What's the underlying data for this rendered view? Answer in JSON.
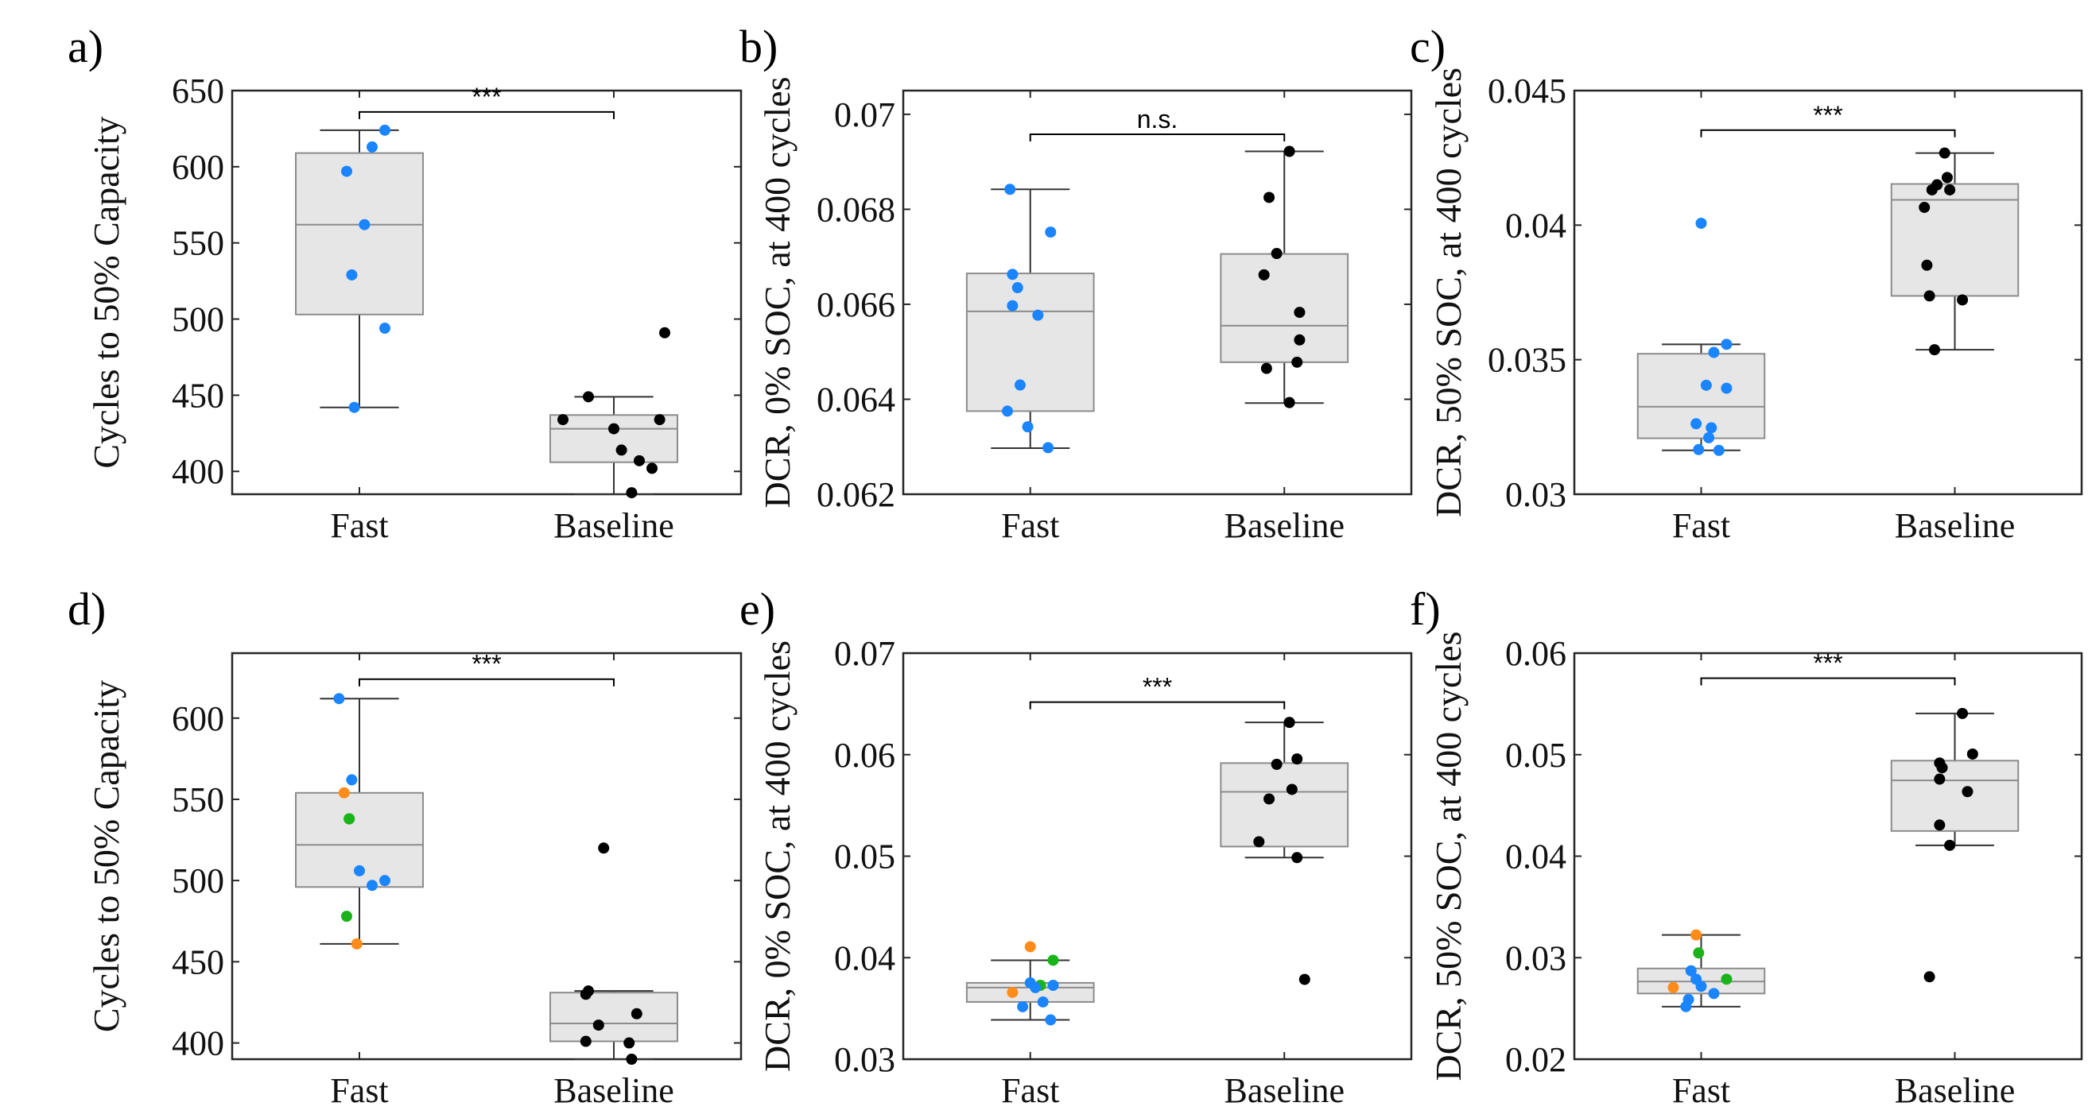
{
  "colors": {
    "fast": "#1a85ff",
    "baseline": "#000000",
    "orange": "#ff8c1a",
    "green": "#1ab41a",
    "box_fill": "#e6e6e6",
    "box_edge": "#8c8c8c"
  },
  "chart_data": [
    {
      "panel": "a)",
      "type": "box",
      "ylabel": "Cycles to 50% Capacity",
      "ylim": [
        385,
        650
      ],
      "yticks": [
        400,
        450,
        500,
        550,
        600,
        650
      ],
      "ytick_labels": [
        "400",
        "450",
        "500",
        "550",
        "600",
        "650"
      ],
      "categories": [
        "Fast",
        "Baseline"
      ],
      "boxes": [
        {
          "q1": 503,
          "median": 562,
          "q3": 609,
          "whisker_low": 442,
          "whisker_high": 624
        },
        {
          "q1": 406,
          "median": 428,
          "q3": 437,
          "whisker_low": 385,
          "whisker_high": 449
        }
      ],
      "points": [
        {
          "category": 0,
          "values": [
            624,
            613,
            597,
            562,
            529,
            494,
            442
          ],
          "offsets": [
            0.1,
            0.05,
            -0.05,
            0.02,
            -0.03,
            0.1,
            -0.02
          ],
          "colors": [
            "#1a85ff",
            "#1a85ff",
            "#1a85ff",
            "#1a85ff",
            "#1a85ff",
            "#1a85ff",
            "#1a85ff"
          ]
        },
        {
          "category": 1,
          "values": [
            491,
            449,
            434,
            434,
            428,
            414,
            407,
            402,
            386
          ],
          "offsets": [
            0.2,
            -0.1,
            -0.2,
            0.18,
            0.0,
            0.03,
            0.1,
            0.15,
            0.07
          ],
          "colors": [
            "#000000",
            "#000000",
            "#000000",
            "#000000",
            "#000000",
            "#000000",
            "#000000",
            "#000000",
            "#000000"
          ]
        }
      ],
      "significance": "***",
      "sig_y": 636
    },
    {
      "panel": "b)",
      "type": "box",
      "ylabel": "DCR, 0% SOC, at 400 cycles",
      "ylim": [
        0.062,
        0.0705
      ],
      "yticks": [
        0.062,
        0.064,
        0.066,
        0.068,
        0.07
      ],
      "ytick_labels": [
        "0.062",
        "0.064",
        "0.066",
        "0.068",
        "0.07"
      ],
      "categories": [
        "Fast",
        "Baseline"
      ],
      "boxes": [
        {
          "q1": 0.06375,
          "median": 0.06585,
          "q3": 0.06665,
          "whisker_low": 0.06297,
          "whisker_high": 0.06842
        },
        {
          "q1": 0.06478,
          "median": 0.06555,
          "q3": 0.06706,
          "whisker_low": 0.06392,
          "whisker_high": 0.06922
        }
      ],
      "points": [
        {
          "category": 0,
          "values": [
            0.06842,
            0.06752,
            0.06663,
            0.06635,
            0.06597,
            0.06577,
            0.0643,
            0.06375,
            0.06342,
            0.06298
          ],
          "offsets": [
            -0.08,
            0.08,
            -0.07,
            -0.05,
            -0.07,
            0.03,
            -0.04,
            -0.09,
            -0.01,
            0.07
          ],
          "colors": [
            "#1a85ff",
            "#1a85ff",
            "#1a85ff",
            "#1a85ff",
            "#1a85ff",
            "#1a85ff",
            "#1a85ff",
            "#1a85ff",
            "#1a85ff",
            "#1a85ff"
          ]
        },
        {
          "category": 1,
          "values": [
            0.06922,
            0.06825,
            0.06707,
            0.06662,
            0.06583,
            0.06525,
            0.06478,
            0.06465,
            0.06393
          ],
          "offsets": [
            0.02,
            -0.06,
            -0.03,
            -0.08,
            0.06,
            0.06,
            0.05,
            -0.07,
            0.02
          ],
          "colors": [
            "#000000",
            "#000000",
            "#000000",
            "#000000",
            "#000000",
            "#000000",
            "#000000",
            "#000000",
            "#000000"
          ]
        }
      ],
      "significance": "n.s.",
      "sig_y": 0.06958
    },
    {
      "panel": "c)",
      "type": "box",
      "ylabel": "DCR, 50% SOC, at 400 cycles",
      "ylim": [
        0.03,
        0.045
      ],
      "yticks": [
        0.03,
        0.035,
        0.04,
        0.045
      ],
      "ytick_labels": [
        "0.03",
        "0.035",
        "0.04",
        "0.045"
      ],
      "categories": [
        "Fast",
        "Baseline"
      ],
      "boxes": [
        {
          "q1": 0.03208,
          "median": 0.03325,
          "q3": 0.03522,
          "whisker_low": 0.03163,
          "whisker_high": 0.03557
        },
        {
          "q1": 0.03737,
          "median": 0.04094,
          "q3": 0.04153,
          "whisker_low": 0.03537,
          "whisker_high": 0.04268
        }
      ],
      "points": [
        {
          "category": 0,
          "values": [
            0.04007,
            0.03557,
            0.03527,
            0.03405,
            0.03394,
            0.03262,
            0.03247,
            0.0321,
            0.03166,
            0.03163
          ],
          "offsets": [
            0.0,
            0.1,
            0.05,
            0.02,
            0.1,
            -0.02,
            0.04,
            0.03,
            -0.01,
            0.07
          ],
          "colors": [
            "#1a85ff",
            "#1a85ff",
            "#1a85ff",
            "#1a85ff",
            "#1a85ff",
            "#1a85ff",
            "#1a85ff",
            "#1a85ff",
            "#1a85ff",
            "#1a85ff"
          ]
        },
        {
          "category": 1,
          "values": [
            0.04268,
            0.04177,
            0.0415,
            0.04131,
            0.04131,
            0.04066,
            0.03851,
            0.03737,
            0.03722,
            0.03537
          ],
          "offsets": [
            -0.04,
            -0.03,
            -0.07,
            -0.02,
            -0.09,
            -0.12,
            -0.11,
            -0.1,
            0.03,
            -0.08
          ],
          "colors": [
            "#000000",
            "#000000",
            "#000000",
            "#000000",
            "#000000",
            "#000000",
            "#000000",
            "#000000",
            "#000000",
            "#000000"
          ]
        }
      ],
      "significance": "***",
      "sig_y": 0.04353
    },
    {
      "panel": "d)",
      "type": "box",
      "ylabel": "Cycles to 50% Capacity",
      "ylim": [
        390,
        640
      ],
      "yticks": [
        400,
        450,
        500,
        550,
        600
      ],
      "ytick_labels": [
        "400",
        "450",
        "500",
        "550",
        "600"
      ],
      "categories": [
        "Fast",
        "Baseline"
      ],
      "boxes": [
        {
          "q1": 496,
          "median": 522,
          "q3": 554,
          "whisker_low": 461,
          "whisker_high": 612
        },
        {
          "q1": 401,
          "median": 412,
          "q3": 431,
          "whisker_low": 390,
          "whisker_high": 432
        }
      ],
      "points": [
        {
          "category": 0,
          "values": [
            612,
            562,
            554,
            538,
            538,
            506,
            500,
            497,
            478,
            461
          ],
          "offsets": [
            -0.08,
            -0.03,
            -0.06,
            -0.04,
            -0.04,
            0.0,
            0.1,
            0.05,
            -0.05,
            -0.01
          ],
          "colors": [
            "#1a85ff",
            "#1a85ff",
            "#ff8c1a",
            "#1ab41a",
            "#1ab41a",
            "#1a85ff",
            "#1a85ff",
            "#1a85ff",
            "#1ab41a",
            "#ff8c1a"
          ]
        },
        {
          "category": 1,
          "values": [
            520,
            432,
            430,
            418,
            411,
            401,
            400,
            390
          ],
          "offsets": [
            -0.04,
            -0.1,
            -0.11,
            0.09,
            -0.06,
            -0.11,
            0.06,
            0.07
          ],
          "colors": [
            "#000000",
            "#000000",
            "#000000",
            "#000000",
            "#000000",
            "#000000",
            "#000000",
            "#000000"
          ]
        }
      ],
      "significance": "***",
      "sig_y": 624
    },
    {
      "panel": "e)",
      "type": "box",
      "ylabel": "DCR, 0% SOC, at 400 cycles",
      "ylim": [
        0.03,
        0.07
      ],
      "yticks": [
        0.03,
        0.04,
        0.05,
        0.06,
        0.07
      ],
      "ytick_labels": [
        "0.03",
        "0.04",
        "0.05",
        "0.06",
        "0.07"
      ],
      "categories": [
        "Fast",
        "Baseline"
      ],
      "boxes": [
        {
          "q1": 0.03564,
          "median": 0.03705,
          "q3": 0.03752,
          "whisker_low": 0.03387,
          "whisker_high": 0.03975
        },
        {
          "q1": 0.05095,
          "median": 0.05634,
          "q3": 0.05917,
          "whisker_low": 0.04986,
          "whisker_high": 0.06318
        }
      ],
      "points": [
        {
          "category": 0,
          "values": [
            0.04108,
            0.03975,
            0.03752,
            0.03728,
            0.03728,
            0.03705,
            0.03658,
            0.03564,
            0.03517,
            0.03387
          ],
          "offsets": [
            0.0,
            0.09,
            0.0,
            0.04,
            0.09,
            0.02,
            -0.07,
            0.05,
            -0.03,
            0.08
          ],
          "colors": [
            "#ff8c1a",
            "#1ab41a",
            "#1a85ff",
            "#1ab41a",
            "#1a85ff",
            "#1a85ff",
            "#ff8c1a",
            "#1a85ff",
            "#1a85ff",
            "#1a85ff"
          ]
        },
        {
          "category": 1,
          "values": [
            0.06318,
            0.05958,
            0.05905,
            0.05658,
            0.05564,
            0.05142,
            0.04986,
            0.03786
          ],
          "offsets": [
            0.02,
            0.05,
            -0.03,
            0.03,
            -0.06,
            -0.1,
            0.05,
            0.08
          ],
          "colors": [
            "#000000",
            "#000000",
            "#000000",
            "#000000",
            "#000000",
            "#000000",
            "#000000",
            "#000000"
          ]
        }
      ],
      "significance": "***",
      "sig_y": 0.06518
    },
    {
      "panel": "f)",
      "type": "box",
      "ylabel": "DCR, 50% SOC, at 400 cycles",
      "ylim": [
        0.02,
        0.06
      ],
      "yticks": [
        0.02,
        0.03,
        0.04,
        0.05,
        0.06
      ],
      "ytick_labels": [
        "0.02",
        "0.03",
        "0.04",
        "0.05",
        "0.06"
      ],
      "categories": [
        "Fast",
        "Baseline"
      ],
      "boxes": [
        {
          "q1": 0.02647,
          "median": 0.02765,
          "q3": 0.02894,
          "whisker_low": 0.02518,
          "whisker_high": 0.03224
        },
        {
          "q1": 0.04248,
          "median": 0.04747,
          "q3": 0.04941,
          "whisker_low": 0.04107,
          "whisker_high": 0.05406
        }
      ],
      "points": [
        {
          "category": 0,
          "values": [
            0.03224,
            0.03047,
            0.02871,
            0.02788,
            0.02788,
            0.02718,
            0.02706,
            0.02647,
            0.02588,
            0.02518
          ],
          "offsets": [
            -0.02,
            -0.01,
            -0.04,
            0.1,
            -0.02,
            0.0,
            -0.11,
            0.05,
            -0.05,
            -0.06
          ],
          "colors": [
            "#ff8c1a",
            "#1ab41a",
            "#1a85ff",
            "#1ab41a",
            "#1a85ff",
            "#1a85ff",
            "#ff8c1a",
            "#1a85ff",
            "#1a85ff",
            "#1a85ff"
          ]
        },
        {
          "category": 1,
          "values": [
            0.05406,
            0.05006,
            0.04918,
            0.04871,
            0.04759,
            0.04636,
            0.04307,
            0.04107,
            0.02812
          ],
          "offsets": [
            0.03,
            0.07,
            -0.06,
            -0.05,
            -0.06,
            0.05,
            -0.06,
            -0.02,
            -0.1
          ],
          "colors": [
            "#000000",
            "#000000",
            "#000000",
            "#000000",
            "#000000",
            "#000000",
            "#000000",
            "#000000",
            "#000000"
          ]
        }
      ],
      "significance": "***",
      "sig_y": 0.05753
    }
  ]
}
